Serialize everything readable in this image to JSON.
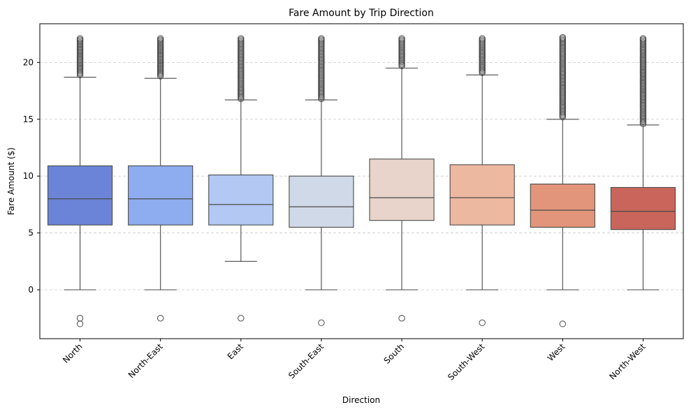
{
  "chart_data": {
    "type": "box",
    "title": "Fare Amount by Trip Direction",
    "xlabel": "Direction",
    "ylabel": "Fare Amount ($)",
    "ylim": [
      -4.3,
      23.4
    ],
    "yticks": [
      0,
      5,
      10,
      15,
      20
    ],
    "grid": "y-dashed",
    "categories": [
      "North",
      "North-East",
      "East",
      "South-East",
      "South",
      "South-West",
      "West",
      "North-West"
    ],
    "colors": [
      "#6b84d8",
      "#8eacf0",
      "#b3c8f3",
      "#d0d9e8",
      "#e8d4ca",
      "#ecb8a0",
      "#e2957b",
      "#c9655a"
    ],
    "boxes": [
      {
        "whisker_low": 0,
        "q1": 5.7,
        "median": 8.0,
        "q3": 10.9,
        "whisker_high": 18.7,
        "outlier_low": [
          -2.5,
          -3.0
        ],
        "outlier_high_range": [
          18.9,
          22.1
        ]
      },
      {
        "whisker_low": 0,
        "q1": 5.7,
        "median": 8.0,
        "q3": 10.9,
        "whisker_high": 18.6,
        "outlier_low": [
          -2.5
        ],
        "outlier_high_range": [
          18.8,
          22.1
        ]
      },
      {
        "whisker_low": 2.5,
        "q1": 5.7,
        "median": 7.5,
        "q3": 10.1,
        "whisker_high": 16.7,
        "outlier_low": [
          -2.5
        ],
        "outlier_high_range": [
          16.8,
          22.1
        ]
      },
      {
        "whisker_low": 0,
        "q1": 5.5,
        "median": 7.3,
        "q3": 10.0,
        "whisker_high": 16.7,
        "outlier_low": [
          -2.9
        ],
        "outlier_high_range": [
          16.8,
          22.1
        ]
      },
      {
        "whisker_low": 0,
        "q1": 6.1,
        "median": 8.1,
        "q3": 11.5,
        "whisker_high": 19.5,
        "outlier_low": [
          -2.5
        ],
        "outlier_high_range": [
          19.7,
          22.1
        ]
      },
      {
        "whisker_low": 0,
        "q1": 5.7,
        "median": 8.1,
        "q3": 11.0,
        "whisker_high": 18.9,
        "outlier_low": [
          -2.9
        ],
        "outlier_high_range": [
          19.1,
          22.1
        ]
      },
      {
        "whisker_low": 0,
        "q1": 5.5,
        "median": 7.0,
        "q3": 9.3,
        "whisker_high": 15.0,
        "outlier_low": [
          -3.0
        ],
        "outlier_high_range": [
          15.2,
          22.2
        ]
      },
      {
        "whisker_low": 0,
        "q1": 5.3,
        "median": 6.9,
        "q3": 9.0,
        "whisker_high": 14.5,
        "outlier_low": [],
        "outlier_high_range": [
          14.6,
          22.1
        ]
      }
    ]
  }
}
